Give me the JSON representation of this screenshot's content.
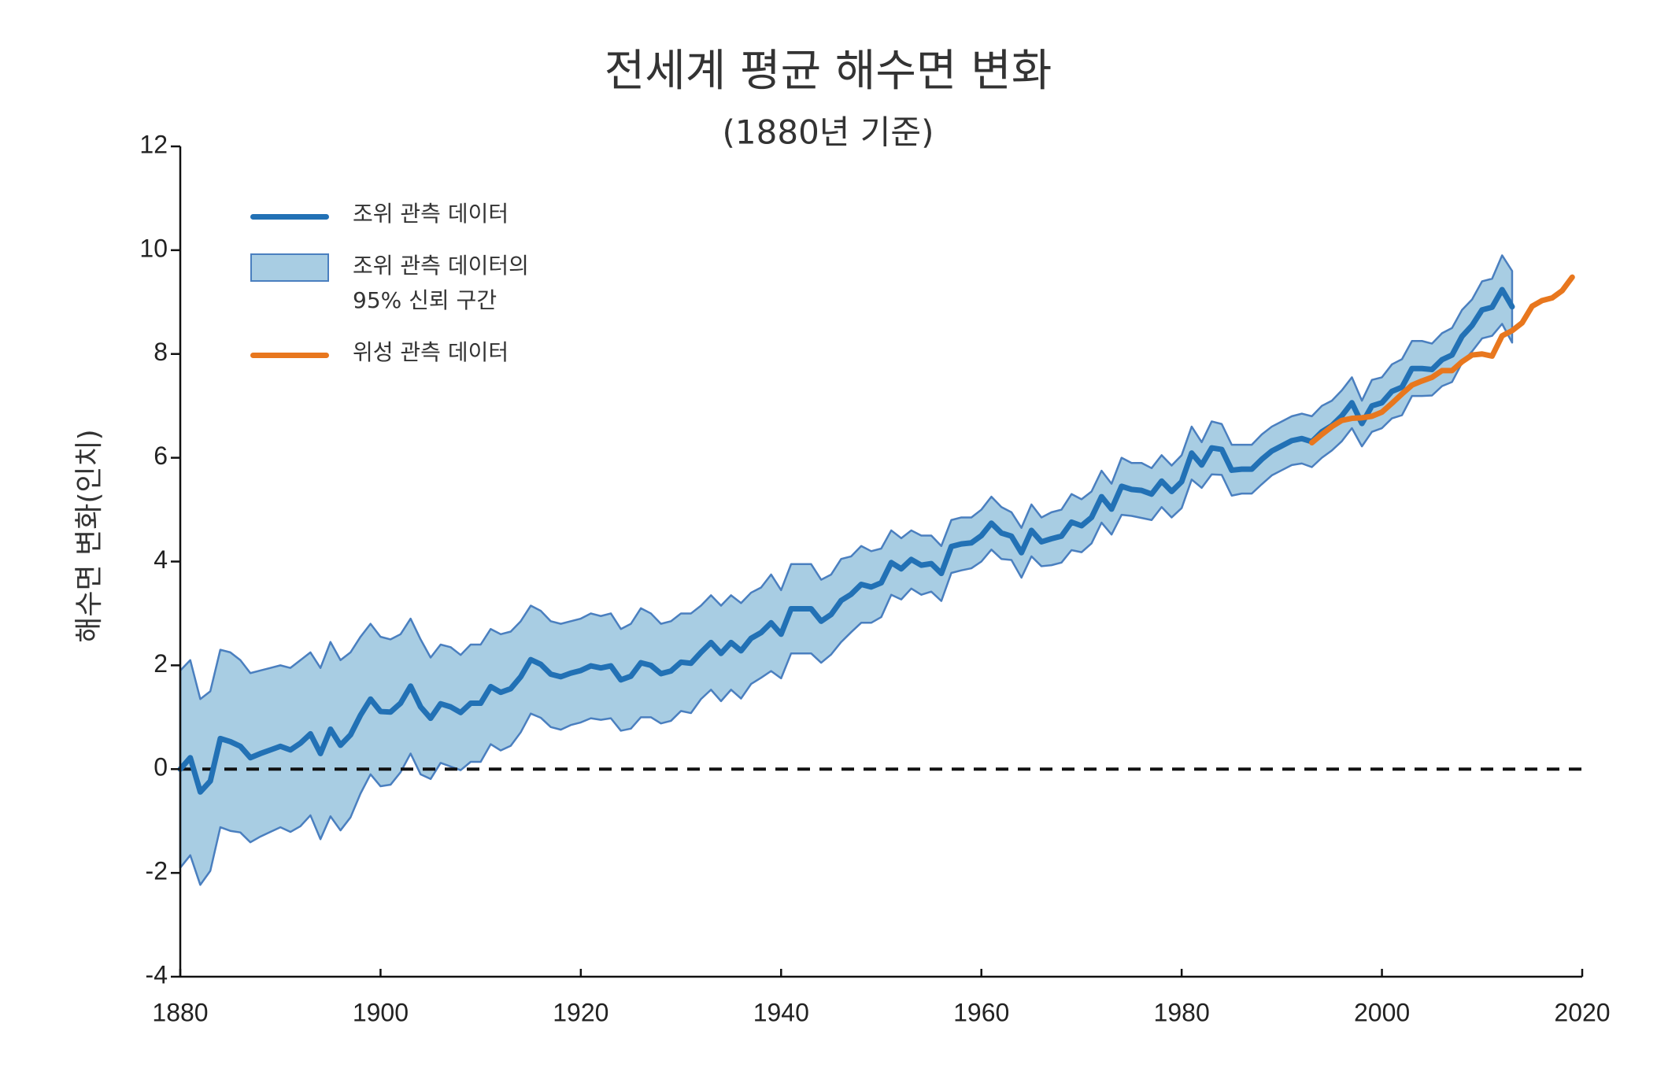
{
  "chart_data": {
    "type": "line",
    "title": "전세계 평균 해수면 변화",
    "subtitle": "(1880년 기준)",
    "y_label": "해수면 변화(인치)",
    "xlim": [
      1880,
      2020
    ],
    "xticks": [
      1880,
      1900,
      1920,
      1940,
      1960,
      1980,
      2000,
      2020
    ],
    "ylim": [
      -4,
      12
    ],
    "yticks": [
      -4,
      -2,
      0,
      2,
      4,
      6,
      8,
      10,
      12
    ],
    "hline": 0,
    "band": {
      "name": "조위 관측 데이터의\n95% 신뢰 구간",
      "color": "#a8cde3",
      "edge_color": "#4a7fbf",
      "x": [
        1880,
        1881,
        1882,
        1883,
        1884,
        1885,
        1886,
        1887,
        1888,
        1889,
        1890,
        1891,
        1892,
        1893,
        1894,
        1895,
        1896,
        1897,
        1898,
        1899,
        1900,
        1901,
        1902,
        1903,
        1904,
        1905,
        1906,
        1907,
        1908,
        1909,
        1910,
        1911,
        1912,
        1913,
        1914,
        1915,
        1916,
        1917,
        1918,
        1919,
        1920,
        1921,
        1922,
        1923,
        1924,
        1925,
        1926,
        1927,
        1928,
        1929,
        1930,
        1931,
        1932,
        1933,
        1934,
        1935,
        1936,
        1937,
        1938,
        1939,
        1940,
        1941,
        1942,
        1943,
        1944,
        1945,
        1946,
        1947,
        1948,
        1949,
        1950,
        1951,
        1952,
        1953,
        1954,
        1955,
        1956,
        1957,
        1958,
        1959,
        1960,
        1961,
        1962,
        1963,
        1964,
        1965,
        1966,
        1967,
        1968,
        1969,
        1970,
        1971,
        1972,
        1973,
        1974,
        1975,
        1976,
        1977,
        1978,
        1979,
        1980,
        1981,
        1982,
        1983,
        1984,
        1985,
        1986,
        1987,
        1988,
        1989,
        1990,
        1991,
        1992,
        1993,
        1994,
        1995,
        1996,
        1997,
        1998,
        1999,
        2000,
        2001,
        2002,
        2003,
        2004,
        2005,
        2006,
        2007,
        2008,
        2009,
        2010,
        2011,
        2012,
        2013
      ],
      "upper": [
        1.9,
        2.1,
        1.35,
        1.5,
        2.3,
        2.25,
        2.1,
        1.85,
        1.9,
        1.95,
        2.0,
        1.95,
        2.1,
        2.25,
        1.95,
        2.45,
        2.1,
        2.25,
        2.55,
        2.8,
        2.55,
        2.5,
        2.6,
        2.9,
        2.5,
        2.15,
        2.4,
        2.35,
        2.2,
        2.4,
        2.4,
        2.7,
        2.6,
        2.65,
        2.85,
        3.15,
        3.05,
        2.85,
        2.8,
        2.85,
        2.9,
        3.0,
        2.95,
        3.0,
        2.7,
        2.8,
        3.1,
        3.0,
        2.8,
        2.85,
        3.0,
        3.0,
        3.15,
        3.35,
        3.15,
        3.35,
        3.2,
        3.4,
        3.5,
        3.75,
        3.45,
        3.95,
        3.95,
        3.95,
        3.65,
        3.75,
        4.05,
        4.1,
        4.3,
        4.2,
        4.25,
        4.6,
        4.45,
        4.6,
        4.5,
        4.5,
        4.3,
        4.8,
        4.85,
        4.85,
        5.0,
        5.25,
        5.05,
        4.95,
        4.65,
        5.1,
        4.85,
        4.95,
        5.0,
        5.3,
        5.2,
        5.35,
        5.75,
        5.5,
        6.0,
        5.9,
        5.9,
        5.8,
        6.05,
        5.85,
        6.05,
        6.6,
        6.3,
        6.7,
        6.65,
        6.25,
        6.25,
        6.25,
        6.45,
        6.6,
        6.7,
        6.8,
        6.85,
        6.8,
        7.0,
        7.1,
        7.3,
        7.55,
        7.1,
        7.5,
        7.55,
        7.8,
        7.9,
        8.25,
        8.25,
        8.2,
        8.4,
        8.5,
        8.85,
        9.05,
        9.4,
        9.45,
        9.9,
        9.6
      ],
      "lower": [
        -1.9,
        -1.66,
        -2.23,
        -1.96,
        -1.12,
        -1.19,
        -1.22,
        -1.41,
        -1.3,
        -1.21,
        -1.12,
        -1.21,
        -1.1,
        -0.89,
        -1.35,
        -0.91,
        -1.18,
        -0.93,
        -0.47,
        -0.1,
        -0.33,
        -0.3,
        -0.06,
        0.3,
        -0.1,
        -0.19,
        0.12,
        0.05,
        -0.02,
        0.14,
        0.14,
        0.48,
        0.36,
        0.45,
        0.71,
        1.07,
        0.99,
        0.81,
        0.76,
        0.85,
        0.9,
        0.98,
        0.95,
        0.98,
        0.74,
        0.78,
        1.0,
        1.0,
        0.88,
        0.93,
        1.12,
        1.08,
        1.35,
        1.53,
        1.31,
        1.53,
        1.36,
        1.64,
        1.76,
        1.89,
        1.75,
        2.23,
        2.23,
        2.23,
        2.05,
        2.21,
        2.45,
        2.64,
        2.82,
        2.82,
        2.93,
        3.36,
        3.27,
        3.48,
        3.36,
        3.42,
        3.24,
        3.78,
        3.83,
        3.87,
        4.0,
        4.23,
        4.05,
        4.03,
        3.69,
        4.1,
        3.91,
        3.93,
        3.98,
        4.22,
        4.18,
        4.35,
        4.75,
        4.52,
        4.9,
        4.88,
        4.84,
        4.8,
        5.05,
        4.85,
        5.03,
        5.58,
        5.42,
        5.68,
        5.67,
        5.27,
        5.31,
        5.31,
        5.49,
        5.66,
        5.76,
        5.86,
        5.89,
        5.82,
        6.0,
        6.14,
        6.32,
        6.57,
        6.22,
        6.5,
        6.57,
        6.76,
        6.82,
        7.19,
        7.19,
        7.2,
        7.38,
        7.46,
        7.83,
        8.05,
        8.3,
        8.35,
        8.58,
        8.22
      ]
    },
    "series": [
      {
        "name": "조위 관측 데이터",
        "color": "#2271b5",
        "x": [
          1880,
          1881,
          1882,
          1883,
          1884,
          1885,
          1886,
          1887,
          1888,
          1889,
          1890,
          1891,
          1892,
          1893,
          1894,
          1895,
          1896,
          1897,
          1898,
          1899,
          1900,
          1901,
          1902,
          1903,
          1904,
          1905,
          1906,
          1907,
          1908,
          1909,
          1910,
          1911,
          1912,
          1913,
          1914,
          1915,
          1916,
          1917,
          1918,
          1919,
          1920,
          1921,
          1922,
          1923,
          1924,
          1925,
          1926,
          1927,
          1928,
          1929,
          1930,
          1931,
          1932,
          1933,
          1934,
          1935,
          1936,
          1937,
          1938,
          1939,
          1940,
          1941,
          1942,
          1943,
          1944,
          1945,
          1946,
          1947,
          1948,
          1949,
          1950,
          1951,
          1952,
          1953,
          1954,
          1955,
          1956,
          1957,
          1958,
          1959,
          1960,
          1961,
          1962,
          1963,
          1964,
          1965,
          1966,
          1967,
          1968,
          1969,
          1970,
          1971,
          1972,
          1973,
          1974,
          1975,
          1976,
          1977,
          1978,
          1979,
          1980,
          1981,
          1982,
          1983,
          1984,
          1985,
          1986,
          1987,
          1988,
          1989,
          1990,
          1991,
          1992,
          1993,
          1994,
          1995,
          1996,
          1997,
          1998,
          1999,
          2000,
          2001,
          2002,
          2003,
          2004,
          2005,
          2006,
          2007,
          2008,
          2009,
          2010,
          2011,
          2012,
          2013
        ],
        "values": [
          0,
          0.22,
          -0.44,
          -0.23,
          0.59,
          0.53,
          0.44,
          0.22,
          0.3,
          0.37,
          0.44,
          0.37,
          0.5,
          0.68,
          0.3,
          0.77,
          0.46,
          0.66,
          1.04,
          1.35,
          1.11,
          1.1,
          1.27,
          1.6,
          1.2,
          0.98,
          1.26,
          1.2,
          1.09,
          1.27,
          1.27,
          1.59,
          1.48,
          1.55,
          1.78,
          2.11,
          2.02,
          1.83,
          1.78,
          1.85,
          1.9,
          1.99,
          1.95,
          1.99,
          1.72,
          1.79,
          2.05,
          2.0,
          1.84,
          1.89,
          2.06,
          2.04,
          2.25,
          2.44,
          2.23,
          2.44,
          2.28,
          2.52,
          2.63,
          2.82,
          2.6,
          3.09,
          3.09,
          3.09,
          2.85,
          2.98,
          3.25,
          3.37,
          3.56,
          3.51,
          3.59,
          3.98,
          3.86,
          4.04,
          3.93,
          3.96,
          3.77,
          4.29,
          4.34,
          4.36,
          4.5,
          4.74,
          4.55,
          4.49,
          4.17,
          4.6,
          4.38,
          4.44,
          4.49,
          4.76,
          4.69,
          4.85,
          5.25,
          5.01,
          5.45,
          5.39,
          5.37,
          5.3,
          5.55,
          5.35,
          5.54,
          6.09,
          5.86,
          6.19,
          6.16,
          5.76,
          5.78,
          5.78,
          5.97,
          6.13,
          6.23,
          6.33,
          6.37,
          6.31,
          6.5,
          6.62,
          6.81,
          7.06,
          6.66,
          7.0,
          7.06,
          7.28,
          7.36,
          7.72,
          7.72,
          7.7,
          7.89,
          7.98,
          8.34,
          8.55,
          8.85,
          8.9,
          9.24,
          8.91
        ]
      },
      {
        "name": "위성 관측 데이터",
        "color": "#e8771e",
        "x": [
          1993,
          1994,
          1995,
          1996,
          1997,
          1998,
          1999,
          2000,
          2001,
          2002,
          2003,
          2004,
          2005,
          2006,
          2007,
          2008,
          2009,
          2010,
          2011,
          2012,
          2013,
          2014,
          2015,
          2016,
          2017,
          2018,
          2019
        ],
        "values": [
          6.29,
          6.45,
          6.6,
          6.72,
          6.76,
          6.77,
          6.8,
          6.88,
          7.05,
          7.23,
          7.4,
          7.48,
          7.55,
          7.68,
          7.68,
          7.85,
          7.98,
          8.0,
          7.96,
          8.35,
          8.45,
          8.6,
          8.92,
          9.03,
          9.08,
          9.22,
          9.48
        ]
      }
    ]
  }
}
